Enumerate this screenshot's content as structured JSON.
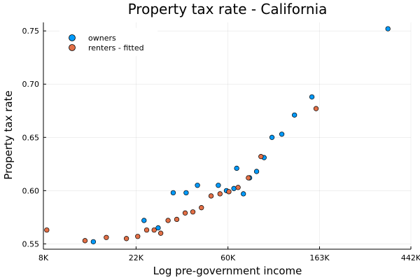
{
  "chart_data": {
    "type": "scatter",
    "title": "Property tax rate - California",
    "xlabel": "Log pre-government income",
    "ylabel": "Property tax rate",
    "x_scale": "log",
    "xlim": [
      8000,
      442000
    ],
    "ylim": [
      0.545,
      0.758
    ],
    "x_ticks": [
      {
        "value": 8000,
        "label": "8K"
      },
      {
        "value": 22000,
        "label": "22K"
      },
      {
        "value": 60000,
        "label": "60K"
      },
      {
        "value": 163000,
        "label": "163K"
      },
      {
        "value": 442000,
        "label": "442K"
      }
    ],
    "y_ticks": [
      {
        "value": 0.55,
        "label": "0.55"
      },
      {
        "value": 0.6,
        "label": "0.60"
      },
      {
        "value": 0.65,
        "label": "0.65"
      },
      {
        "value": 0.7,
        "label": "0.70"
      },
      {
        "value": 0.75,
        "label": "0.75"
      }
    ],
    "grid": true,
    "legend_position": "top-left",
    "series": [
      {
        "name": "owners",
        "color": "#009AFA",
        "points": [
          [
            13800,
            0.552
          ],
          [
            24000,
            0.572
          ],
          [
            28000,
            0.565
          ],
          [
            33000,
            0.598
          ],
          [
            38000,
            0.598
          ],
          [
            43000,
            0.605
          ],
          [
            54000,
            0.605
          ],
          [
            59000,
            0.6
          ],
          [
            64000,
            0.602
          ],
          [
            66000,
            0.621
          ],
          [
            71000,
            0.597
          ],
          [
            76000,
            0.612
          ],
          [
            82000,
            0.618
          ],
          [
            89000,
            0.631
          ],
          [
            97000,
            0.65
          ],
          [
            108000,
            0.653
          ],
          [
            124000,
            0.671
          ],
          [
            150000,
            0.688
          ],
          [
            344000,
            0.752
          ]
        ]
      },
      {
        "name": "renters - fitted",
        "color": "#E26F46",
        "points": [
          [
            8300,
            0.563
          ],
          [
            12600,
            0.553
          ],
          [
            15900,
            0.556
          ],
          [
            19800,
            0.555
          ],
          [
            22400,
            0.557
          ],
          [
            24700,
            0.563
          ],
          [
            26800,
            0.563
          ],
          [
            28800,
            0.56
          ],
          [
            31200,
            0.572
          ],
          [
            34300,
            0.573
          ],
          [
            37600,
            0.579
          ],
          [
            40900,
            0.58
          ],
          [
            44900,
            0.584
          ],
          [
            49900,
            0.595
          ],
          [
            55000,
            0.597
          ],
          [
            60600,
            0.599
          ],
          [
            67000,
            0.603
          ],
          [
            75000,
            0.612
          ],
          [
            86000,
            0.632
          ],
          [
            157000,
            0.677
          ]
        ]
      }
    ]
  }
}
